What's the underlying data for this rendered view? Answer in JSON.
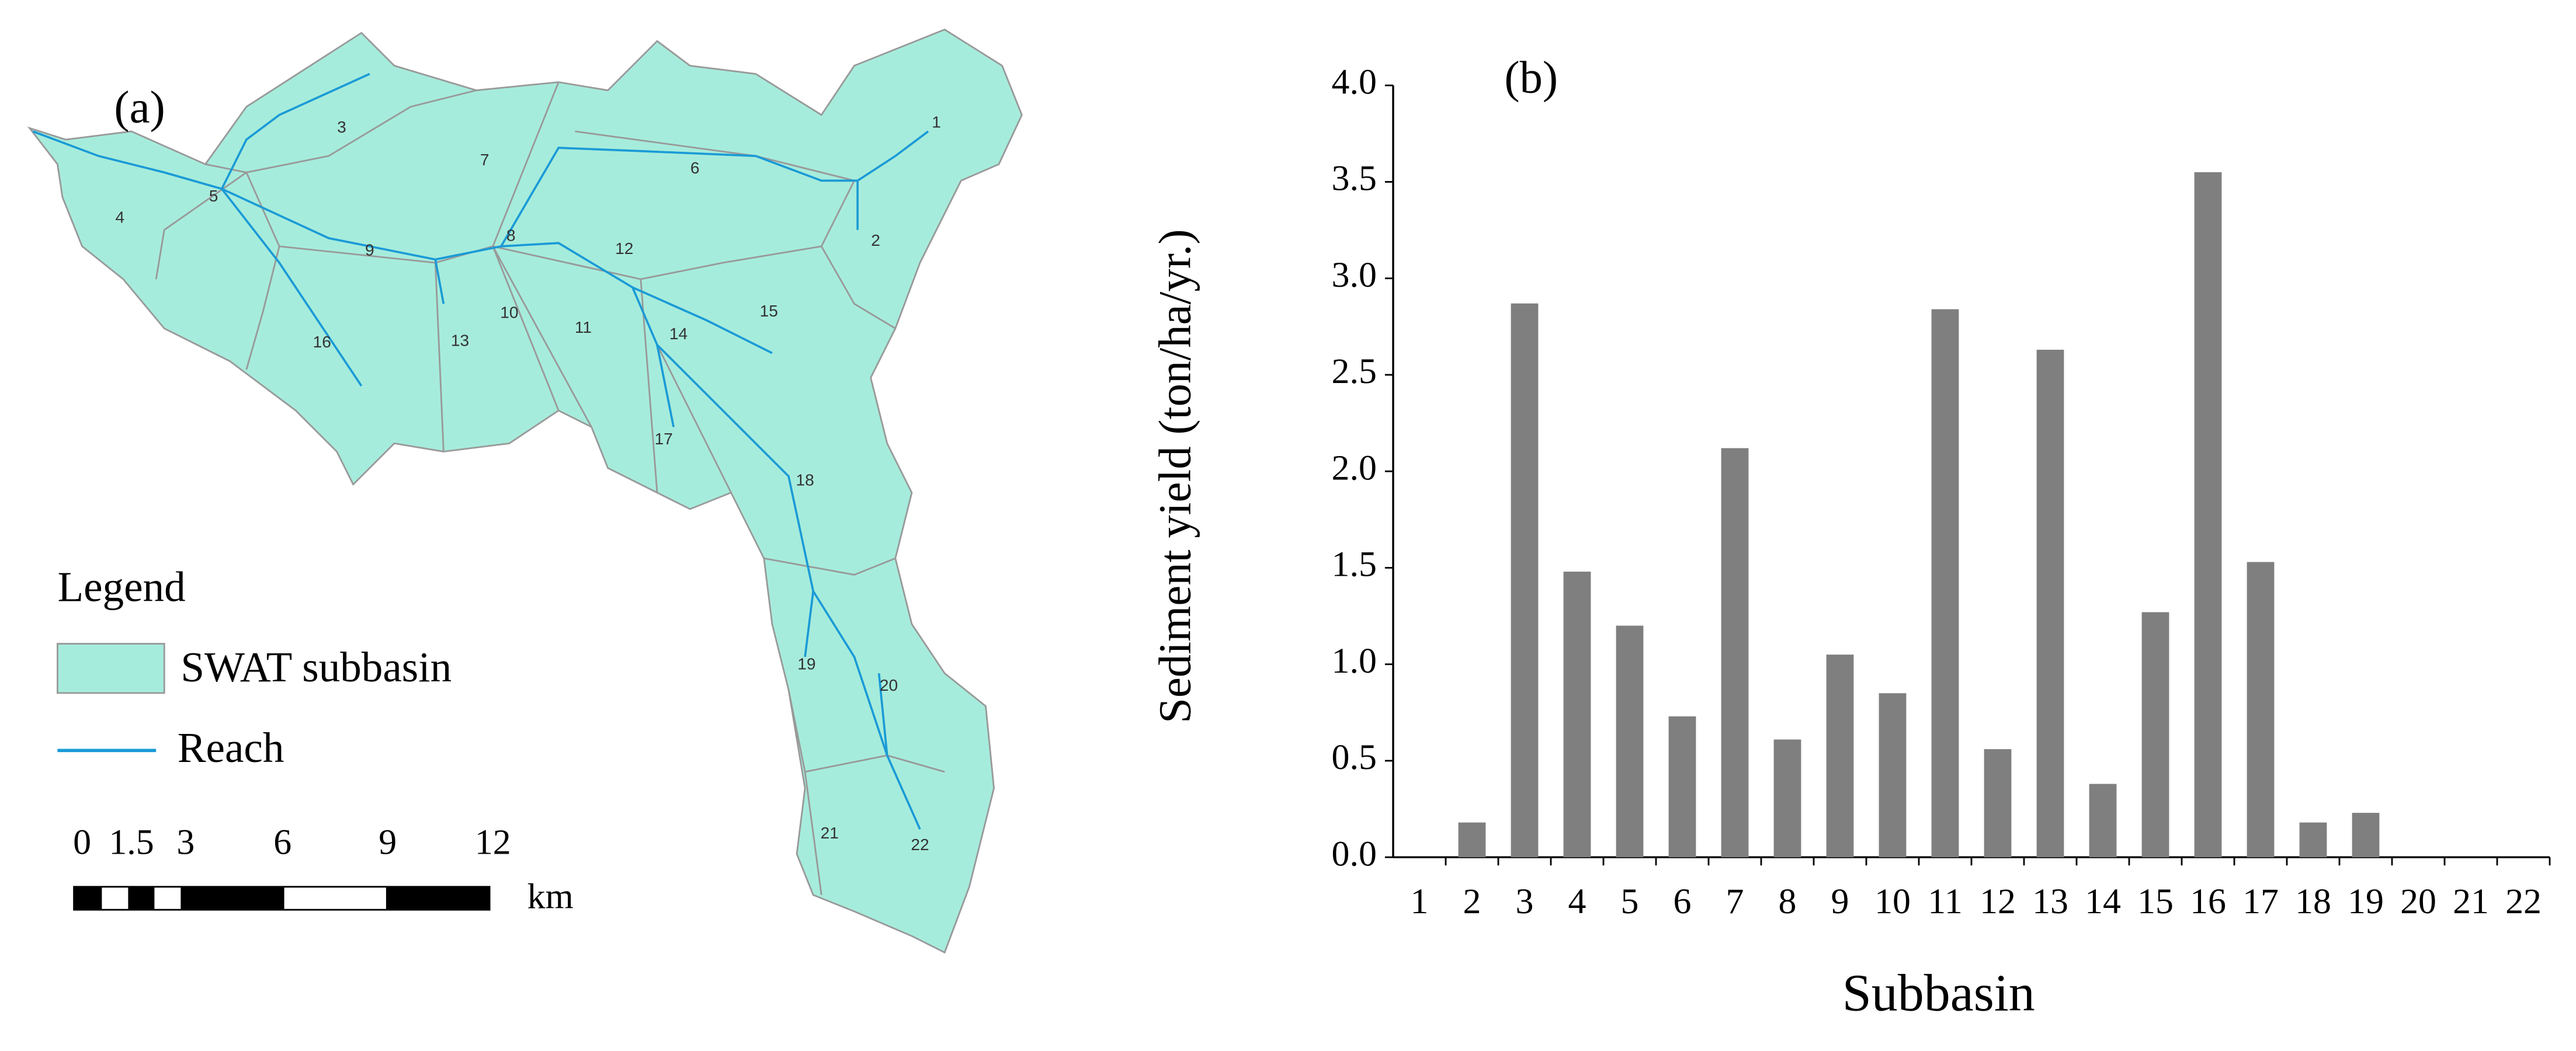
{
  "map": {
    "panel_label": "(a)",
    "subbasin_labels": [
      "1",
      "2",
      "3",
      "4",
      "5",
      "6",
      "7",
      "8",
      "9",
      "10",
      "11",
      "12",
      "13",
      "14",
      "15",
      "16",
      "17",
      "18",
      "19",
      "20",
      "21",
      "22"
    ],
    "legend": {
      "title": "Legend",
      "entries": [
        "SWAT subbasin",
        "Reach"
      ]
    },
    "scale_bar": {
      "labels": [
        "0",
        "1.5",
        "3",
        "6",
        "9",
        "12"
      ],
      "unit": "km"
    }
  },
  "chart_data": {
    "type": "bar",
    "title": "(b)",
    "y_label": "Sediment yield (ton/ha/yr.)",
    "x_label": "Subbasin",
    "categories": [
      "1",
      "2",
      "3",
      "4",
      "5",
      "6",
      "7",
      "8",
      "9",
      "10",
      "11",
      "12",
      "13",
      "14",
      "15",
      "16",
      "17",
      "18",
      "19",
      "20",
      "21",
      "22"
    ],
    "values": [
      0,
      0.18,
      2.87,
      1.48,
      1.2,
      0.73,
      2.12,
      0.61,
      1.05,
      0.85,
      2.84,
      0.56,
      2.63,
      0.38,
      1.27,
      3.55,
      1.53,
      0.18,
      0.23,
      0,
      0,
      0
    ],
    "color": "#7f7f7f",
    "ylim": [
      0,
      4
    ],
    "yticks": [
      {
        "value": 0,
        "label": "0.0"
      },
      {
        "value": 0.5,
        "label": "0.5"
      },
      {
        "value": 1,
        "label": "1.0"
      },
      {
        "value": 1.5,
        "label": "1.5"
      },
      {
        "value": 2,
        "label": "2.0"
      },
      {
        "value": 2.5,
        "label": "2.5"
      },
      {
        "value": 3,
        "label": "3.0"
      },
      {
        "value": 3.5,
        "label": "3.5"
      },
      {
        "value": 4,
        "label": "4.0"
      }
    ]
  }
}
